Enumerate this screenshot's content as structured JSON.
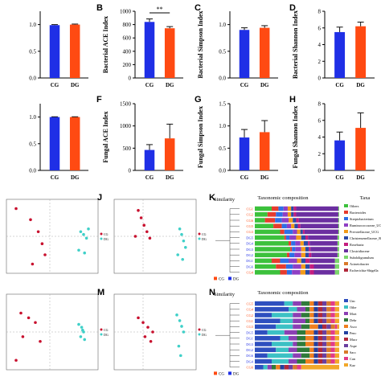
{
  "colors": {
    "cg": "#1f2fe6",
    "dg": "#ff4a12",
    "pcoa_cg": "#c8102e",
    "pcoa_dg": "#3fd0c8",
    "error": "#111111"
  },
  "labels": {
    "B": "B",
    "C": "C",
    "D": "D",
    "F": "F",
    "G": "G",
    "H": "H",
    "J": "J",
    "K": "K",
    "M": "M",
    "N": "N"
  },
  "chart_data": [
    {
      "id": "A",
      "type": "bar",
      "categories": [
        "CG",
        "DG"
      ],
      "values": [
        0.99,
        1.0
      ],
      "errors": [
        0.01,
        0.01
      ],
      "ylim": [
        0,
        1.25
      ],
      "yticks": [
        "0.0",
        "0.5",
        "1.0"
      ],
      "ytick_values": [
        0.0,
        0.5,
        1.0
      ],
      "ylabel": ""
    },
    {
      "id": "B",
      "type": "bar",
      "categories": [
        "CG",
        "DG"
      ],
      "values": [
        840,
        745
      ],
      "errors": [
        45,
        25
      ],
      "ylim": [
        0,
        1000
      ],
      "yticks": [
        "0",
        "200",
        "400",
        "600",
        "800",
        "1000"
      ],
      "ytick_values": [
        0,
        200,
        400,
        600,
        800,
        1000
      ],
      "ylabel": "Bacterial ACE Index",
      "significance": "**"
    },
    {
      "id": "C",
      "type": "bar",
      "categories": [
        "CG",
        "DG"
      ],
      "values": [
        0.9,
        0.94
      ],
      "errors": [
        0.04,
        0.04
      ],
      "ylim": [
        0,
        1.25
      ],
      "yticks": [
        "0.0",
        "0.5",
        "1.0"
      ],
      "ytick_values": [
        0.0,
        0.5,
        1.0
      ],
      "ylabel": "Bacterial Simpson Index"
    },
    {
      "id": "D",
      "type": "bar",
      "categories": [
        "CG",
        "DG"
      ],
      "values": [
        5.5,
        6.2
      ],
      "errors": [
        0.6,
        0.5
      ],
      "ylim": [
        0,
        8
      ],
      "yticks": [
        "0",
        "2",
        "4",
        "6",
        "8"
      ],
      "ytick_values": [
        0,
        2,
        4,
        6,
        8
      ],
      "ylabel": "Bacterial Shannon Index"
    },
    {
      "id": "E",
      "type": "bar",
      "categories": [
        "CG",
        "DG"
      ],
      "values": [
        1.0,
        1.0
      ],
      "errors": [
        0.005,
        0.005
      ],
      "ylim": [
        0,
        1.25
      ],
      "yticks": [
        "0.0",
        "0.5",
        "1.0"
      ],
      "ytick_values": [
        0.0,
        0.5,
        1.0
      ],
      "ylabel": ""
    },
    {
      "id": "F",
      "type": "bar",
      "categories": [
        "CG",
        "DG"
      ],
      "values": [
        460,
        720
      ],
      "errors": [
        120,
        320
      ],
      "ylim": [
        0,
        1500
      ],
      "yticks": [
        "0",
        "500",
        "1000",
        "1500"
      ],
      "ytick_values": [
        0,
        500,
        1000,
        1500
      ],
      "ylabel": "Fungal ACE Index"
    },
    {
      "id": "G",
      "type": "bar",
      "categories": [
        "CG",
        "DG"
      ],
      "values": [
        0.74,
        0.86
      ],
      "errors": [
        0.18,
        0.26
      ],
      "ylim": [
        0,
        1.5
      ],
      "yticks": [
        "0.0",
        "0.5",
        "1.0",
        "1.5"
      ],
      "ytick_values": [
        0.0,
        0.5,
        1.0,
        1.5
      ],
      "ylabel": "Fungal Simpson Index"
    },
    {
      "id": "H",
      "type": "bar",
      "categories": [
        "CG",
        "DG"
      ],
      "values": [
        3.6,
        5.1
      ],
      "errors": [
        1.0,
        1.8
      ],
      "ylim": [
        0,
        8
      ],
      "yticks": [
        "0",
        "2",
        "4",
        "6",
        "8"
      ],
      "ytick_values": [
        0,
        2,
        4,
        6,
        8
      ],
      "ylabel": "Fungal Shannon Index"
    },
    {
      "id": "I",
      "type": "scatter",
      "series": [
        {
          "name": "CG",
          "x": [
            -0.35,
            -0.2,
            -0.12,
            -0.08,
            -0.05,
            -0.18
          ],
          "y": [
            0.3,
            0.18,
            0.05,
            -0.08,
            -0.2,
            -0.3
          ]
        },
        {
          "name": "DG",
          "x": [
            0.32,
            0.35,
            0.38,
            0.3,
            0.36,
            0.4
          ],
          "y": [
            0.05,
            0.02,
            -0.02,
            -0.15,
            -0.18,
            0.08
          ]
        }
      ],
      "xlim": [
        -0.45,
        0.5
      ],
      "ylim": [
        -0.4,
        0.4
      ]
    },
    {
      "id": "J",
      "type": "scatter",
      "series": [
        {
          "name": "CG",
          "x": [
            -0.05,
            -0.02,
            0.01,
            0.04,
            0.07,
            -0.08
          ],
          "y": [
            0.28,
            0.2,
            0.12,
            0.05,
            -0.02,
            0.0
          ]
        },
        {
          "name": "DG",
          "x": [
            0.38,
            0.4,
            0.42,
            0.44,
            0.36,
            0.41
          ],
          "y": [
            0.08,
            0.02,
            -0.05,
            -0.12,
            -0.2,
            -0.25
          ]
        }
      ],
      "xlim": [
        -0.3,
        0.55
      ],
      "ylim": [
        -0.4,
        0.4
      ]
    },
    {
      "id": "L",
      "type": "scatter",
      "series": [
        {
          "name": "CG",
          "x": [
            -0.3,
            -0.22,
            -0.15,
            -0.28,
            -0.1,
            -0.35
          ],
          "y": [
            0.2,
            0.15,
            0.1,
            -0.05,
            -0.1,
            -0.3
          ]
        },
        {
          "name": "DG",
          "x": [
            0.3,
            0.33,
            0.35,
            0.32,
            0.36,
            0.34
          ],
          "y": [
            0.08,
            0.05,
            0.0,
            -0.05,
            -0.08,
            0.02
          ]
        }
      ],
      "xlim": [
        -0.45,
        0.5
      ],
      "ylim": [
        -0.4,
        0.4
      ]
    },
    {
      "id": "M",
      "type": "scatter",
      "series": [
        {
          "name": "CG",
          "x": [
            -0.05,
            0.0,
            0.05,
            0.1,
            0.02,
            0.08
          ],
          "y": [
            0.15,
            0.1,
            0.05,
            0.0,
            -0.05,
            -0.1
          ]
        },
        {
          "name": "DG",
          "x": [
            0.35,
            0.38,
            0.4,
            0.42,
            0.37,
            0.39
          ],
          "y": [
            0.18,
            0.12,
            0.06,
            0.0,
            -0.15,
            -0.25
          ]
        }
      ],
      "xlim": [
        -0.3,
        0.55
      ],
      "ylim": [
        -0.4,
        0.4
      ]
    }
  ],
  "tax_k": {
    "similarity": "Similarity",
    "title": "Taxonomic composition",
    "taxa_header": "Taxa",
    "samples": [
      {
        "name": "CG1",
        "group": "CG"
      },
      {
        "name": "CG2",
        "group": "CG"
      },
      {
        "name": "CG6",
        "group": "CG"
      },
      {
        "name": "CG5",
        "group": "CG"
      },
      {
        "name": "CG3",
        "group": "CG"
      },
      {
        "name": "DG5",
        "group": "DG"
      },
      {
        "name": "DG4",
        "group": "DG"
      },
      {
        "name": "DG3",
        "group": "DG"
      },
      {
        "name": "DG2",
        "group": "DG"
      },
      {
        "name": "DG1",
        "group": "DG"
      },
      {
        "name": "DG6",
        "group": "DG"
      },
      {
        "name": "CG4",
        "group": "CG"
      }
    ],
    "taxa": [
      "Others",
      "Bacteroides",
      "Streptobacterium",
      "Ruminococcaceae_UC",
      "Prevotellaceae_UCG",
      "Christensenellaceae_R",
      "Roseburia",
      "Clostridiaceae",
      "Subdoligranulum",
      "Acinetobacter",
      "Escherichia-Shigella"
    ],
    "taxa_colors": [
      "#3cc13c",
      "#e63b2e",
      "#2e6fe6",
      "#8f3fc4",
      "#f29b1a",
      "#2a4aa8",
      "#c41d7f",
      "#6b2fa0",
      "#7bd66b",
      "#d97a2b",
      "#b0283a"
    ],
    "fractions": [
      [
        0.2,
        0.08,
        0.06,
        0.05,
        0.04,
        0.03,
        0.03,
        0.5,
        0.01,
        0.0,
        0.0
      ],
      [
        0.15,
        0.1,
        0.08,
        0.06,
        0.04,
        0.03,
        0.03,
        0.5,
        0.01,
        0.0,
        0.0
      ],
      [
        0.12,
        0.12,
        0.08,
        0.08,
        0.05,
        0.04,
        0.03,
        0.47,
        0.01,
        0.0,
        0.0
      ],
      [
        0.22,
        0.1,
        0.06,
        0.05,
        0.04,
        0.04,
        0.03,
        0.45,
        0.01,
        0.0,
        0.0
      ],
      [
        0.3,
        0.05,
        0.1,
        0.05,
        0.04,
        0.03,
        0.02,
        0.4,
        0.01,
        0.0,
        0.0
      ],
      [
        0.35,
        0.02,
        0.04,
        0.08,
        0.06,
        0.05,
        0.03,
        0.35,
        0.02,
        0.0,
        0.0
      ],
      [
        0.4,
        0.03,
        0.05,
        0.06,
        0.04,
        0.05,
        0.02,
        0.33,
        0.02,
        0.0,
        0.0
      ],
      [
        0.42,
        0.02,
        0.04,
        0.07,
        0.05,
        0.04,
        0.02,
        0.32,
        0.02,
        0.0,
        0.0
      ],
      [
        0.38,
        0.03,
        0.06,
        0.08,
        0.05,
        0.04,
        0.03,
        0.31,
        0.02,
        0.0,
        0.0
      ],
      [
        0.2,
        0.1,
        0.1,
        0.1,
        0.05,
        0.05,
        0.05,
        0.3,
        0.05,
        0.0,
        0.0
      ],
      [
        0.25,
        0.12,
        0.08,
        0.1,
        0.05,
        0.05,
        0.05,
        0.25,
        0.05,
        0.0,
        0.0
      ],
      [
        0.3,
        0.08,
        0.06,
        0.1,
        0.06,
        0.05,
        0.05,
        0.25,
        0.05,
        0.0,
        0.0
      ]
    ],
    "legend_cg": "CG",
    "legend_dg": "DG"
  },
  "tax_n": {
    "similarity": "Similarity",
    "title": "Taxonomic composition",
    "samples": [
      {
        "name": "CG5",
        "group": "CG"
      },
      {
        "name": "CG4",
        "group": "CG"
      },
      {
        "name": "CG2",
        "group": "CG"
      },
      {
        "name": "CG1",
        "group": "CG"
      },
      {
        "name": "CG3",
        "group": "CG"
      },
      {
        "name": "DG5",
        "group": "DG"
      },
      {
        "name": "DG1",
        "group": "DG"
      },
      {
        "name": "DG3",
        "group": "DG"
      },
      {
        "name": "DG2",
        "group": "DG"
      },
      {
        "name": "DG6",
        "group": "DG"
      },
      {
        "name": "DG4",
        "group": "DG"
      },
      {
        "name": "CG6",
        "group": "CG"
      }
    ],
    "taxa": [
      "Unc",
      "Othe",
      "Mort",
      "Debr",
      "Asco",
      "Penc",
      "Mucr",
      "Aspe",
      "Sacc",
      "Can",
      "Kaz"
    ],
    "taxa_colors": [
      "#2e4fbf",
      "#3cc1c4",
      "#8b3fb4",
      "#2f7a3a",
      "#f07f1f",
      "#2340a0",
      "#b0283a",
      "#6a3fa0",
      "#d97a2b",
      "#e23b8a",
      "#f2a82a"
    ],
    "fractions": [
      [
        0.35,
        0.1,
        0.1,
        0.1,
        0.05,
        0.05,
        0.05,
        0.05,
        0.05,
        0.05,
        0.05
      ],
      [
        0.4,
        0.1,
        0.1,
        0.05,
        0.05,
        0.05,
        0.05,
        0.05,
        0.05,
        0.05,
        0.05
      ],
      [
        0.2,
        0.25,
        0.1,
        0.1,
        0.05,
        0.05,
        0.05,
        0.05,
        0.05,
        0.05,
        0.05
      ],
      [
        0.3,
        0.15,
        0.15,
        0.05,
        0.05,
        0.05,
        0.05,
        0.05,
        0.05,
        0.05,
        0.05
      ],
      [
        0.25,
        0.2,
        0.1,
        0.1,
        0.1,
        0.05,
        0.05,
        0.05,
        0.05,
        0.025,
        0.025
      ],
      [
        0.15,
        0.2,
        0.15,
        0.1,
        0.1,
        0.05,
        0.05,
        0.05,
        0.05,
        0.05,
        0.05
      ],
      [
        0.3,
        0.1,
        0.1,
        0.1,
        0.1,
        0.05,
        0.05,
        0.05,
        0.05,
        0.05,
        0.05
      ],
      [
        0.2,
        0.25,
        0.05,
        0.1,
        0.1,
        0.05,
        0.05,
        0.05,
        0.05,
        0.05,
        0.05
      ],
      [
        0.25,
        0.15,
        0.1,
        0.15,
        0.05,
        0.05,
        0.05,
        0.05,
        0.05,
        0.05,
        0.05
      ],
      [
        0.15,
        0.3,
        0.1,
        0.1,
        0.05,
        0.05,
        0.05,
        0.05,
        0.05,
        0.05,
        0.05
      ],
      [
        0.2,
        0.2,
        0.1,
        0.1,
        0.1,
        0.05,
        0.05,
        0.05,
        0.05,
        0.05,
        0.05
      ],
      [
        0.1,
        0.05,
        0.05,
        0.05,
        0.05,
        0.05,
        0.05,
        0.05,
        0.05,
        0.05,
        0.45
      ]
    ],
    "legend_cg": "CG",
    "legend_dg": "DG"
  }
}
